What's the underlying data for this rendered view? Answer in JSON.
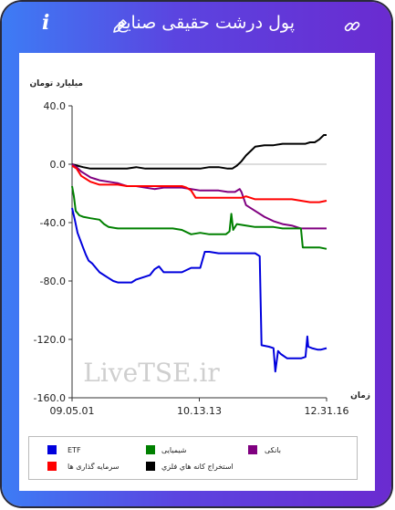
{
  "header": {
    "title": "پول درشت حقیقی صنایع",
    "info_icon": "info-icon",
    "edit_icon": "pencil-icon",
    "link_icon": "link-icon"
  },
  "chart_data": {
    "type": "line",
    "ylabel": "میلیارد تومان",
    "xlabel": "زمان",
    "ylim": [
      -160,
      40
    ],
    "yticks": [
      "40.0",
      "0.0",
      "-40.0",
      "-80.0",
      "-120.0",
      "-160.0"
    ],
    "xticks": [
      "09.05.01",
      "10.13.13",
      "12.31.16"
    ],
    "watermark": "LiveTSE.ir",
    "colors": {
      "ETF": "#0000dd",
      "chem": "#008000",
      "bank": "#800080",
      "invest": "#ff0000",
      "metal": "#000000"
    },
    "series": [
      {
        "name": "استخراج کانه هاي فلزي",
        "color": "#000000",
        "values": [
          [
            0,
            0
          ],
          [
            6,
            -1
          ],
          [
            12,
            -2
          ],
          [
            20,
            -3
          ],
          [
            30,
            -3
          ],
          [
            40,
            -3
          ],
          [
            50,
            -3
          ],
          [
            60,
            -3
          ],
          [
            70,
            -2
          ],
          [
            80,
            -3
          ],
          [
            90,
            -3
          ],
          [
            100,
            -3
          ],
          [
            110,
            -3
          ],
          [
            120,
            -3
          ],
          [
            130,
            -3
          ],
          [
            140,
            -3
          ],
          [
            150,
            -2
          ],
          [
            160,
            -2
          ],
          [
            170,
            -3
          ],
          [
            175,
            -3
          ],
          [
            180,
            -1
          ],
          [
            185,
            2
          ],
          [
            190,
            6
          ],
          [
            195,
            9
          ],
          [
            200,
            12
          ],
          [
            210,
            13
          ],
          [
            220,
            13
          ],
          [
            230,
            14
          ],
          [
            240,
            14
          ],
          [
            250,
            14
          ],
          [
            255,
            14
          ],
          [
            260,
            15
          ],
          [
            265,
            15
          ],
          [
            270,
            17
          ],
          [
            275,
            20
          ],
          [
            278,
            20
          ]
        ]
      },
      {
        "name": "بانکی",
        "color": "#800080",
        "values": [
          [
            0,
            0
          ],
          [
            5,
            -2
          ],
          [
            10,
            -5
          ],
          [
            15,
            -7
          ],
          [
            20,
            -9
          ],
          [
            25,
            -10
          ],
          [
            30,
            -11
          ],
          [
            40,
            -12
          ],
          [
            50,
            -13
          ],
          [
            55,
            -14
          ],
          [
            60,
            -15
          ],
          [
            70,
            -15
          ],
          [
            80,
            -16
          ],
          [
            90,
            -17
          ],
          [
            100,
            -16
          ],
          [
            110,
            -16
          ],
          [
            120,
            -16
          ],
          [
            130,
            -17
          ],
          [
            140,
            -18
          ],
          [
            150,
            -18
          ],
          [
            160,
            -18
          ],
          [
            170,
            -19
          ],
          [
            178,
            -19
          ],
          [
            183,
            -17
          ],
          [
            185,
            -19
          ],
          [
            190,
            -28
          ],
          [
            200,
            -32
          ],
          [
            210,
            -36
          ],
          [
            220,
            -39
          ],
          [
            230,
            -41
          ],
          [
            240,
            -42
          ],
          [
            245,
            -43
          ],
          [
            250,
            -44
          ],
          [
            260,
            -44
          ],
          [
            270,
            -44
          ],
          [
            278,
            -44
          ]
        ]
      },
      {
        "name": "سرمایه گذاری ها",
        "color": "#ff0000",
        "values": [
          [
            0,
            -1
          ],
          [
            5,
            -3
          ],
          [
            10,
            -8
          ],
          [
            15,
            -10
          ],
          [
            20,
            -12
          ],
          [
            25,
            -13
          ],
          [
            30,
            -14
          ],
          [
            40,
            -14
          ],
          [
            50,
            -14
          ],
          [
            60,
            -15
          ],
          [
            70,
            -15
          ],
          [
            80,
            -15
          ],
          [
            90,
            -15
          ],
          [
            100,
            -15
          ],
          [
            110,
            -15
          ],
          [
            120,
            -15
          ],
          [
            125,
            -16
          ],
          [
            130,
            -18
          ],
          [
            135,
            -23
          ],
          [
            140,
            -23
          ],
          [
            150,
            -23
          ],
          [
            160,
            -23
          ],
          [
            170,
            -23
          ],
          [
            178,
            -23
          ],
          [
            185,
            -23
          ],
          [
            190,
            -22
          ],
          [
            195,
            -23
          ],
          [
            200,
            -24
          ],
          [
            210,
            -24
          ],
          [
            220,
            -24
          ],
          [
            230,
            -24
          ],
          [
            240,
            -24
          ],
          [
            250,
            -25
          ],
          [
            260,
            -26
          ],
          [
            270,
            -26
          ],
          [
            278,
            -25
          ]
        ]
      },
      {
        "name": "شیمیایی",
        "color": "#008000",
        "values": [
          [
            0,
            -15
          ],
          [
            2,
            -22
          ],
          [
            4,
            -32
          ],
          [
            8,
            -35
          ],
          [
            12,
            -36
          ],
          [
            20,
            -37
          ],
          [
            30,
            -38
          ],
          [
            35,
            -41
          ],
          [
            40,
            -43
          ],
          [
            50,
            -44
          ],
          [
            60,
            -44
          ],
          [
            70,
            -44
          ],
          [
            80,
            -44
          ],
          [
            90,
            -44
          ],
          [
            100,
            -44
          ],
          [
            110,
            -44
          ],
          [
            120,
            -45
          ],
          [
            130,
            -48
          ],
          [
            140,
            -47
          ],
          [
            150,
            -48
          ],
          [
            160,
            -48
          ],
          [
            168,
            -48
          ],
          [
            172,
            -46
          ],
          [
            174,
            -34
          ],
          [
            176,
            -45
          ],
          [
            180,
            -41
          ],
          [
            190,
            -42
          ],
          [
            200,
            -43
          ],
          [
            210,
            -43
          ],
          [
            220,
            -43
          ],
          [
            230,
            -44
          ],
          [
            240,
            -44
          ],
          [
            250,
            -44
          ],
          [
            252,
            -57
          ],
          [
            256,
            -57
          ],
          [
            262,
            -57
          ],
          [
            270,
            -57
          ],
          [
            278,
            -58
          ]
        ]
      },
      {
        "name": "ETF",
        "color": "#0000dd",
        "values": [
          [
            0,
            -30
          ],
          [
            3,
            -38
          ],
          [
            6,
            -47
          ],
          [
            9,
            -52
          ],
          [
            12,
            -57
          ],
          [
            15,
            -62
          ],
          [
            18,
            -66
          ],
          [
            22,
            -68
          ],
          [
            26,
            -71
          ],
          [
            30,
            -74
          ],
          [
            35,
            -76
          ],
          [
            40,
            -78
          ],
          [
            45,
            -80
          ],
          [
            50,
            -81
          ],
          [
            55,
            -81
          ],
          [
            60,
            -81
          ],
          [
            65,
            -81
          ],
          [
            70,
            -79
          ],
          [
            75,
            -78
          ],
          [
            80,
            -77
          ],
          [
            85,
            -76
          ],
          [
            90,
            -72
          ],
          [
            95,
            -70
          ],
          [
            100,
            -74
          ],
          [
            110,
            -74
          ],
          [
            120,
            -74
          ],
          [
            130,
            -71
          ],
          [
            140,
            -71
          ],
          [
            145,
            -60
          ],
          [
            150,
            -60
          ],
          [
            160,
            -61
          ],
          [
            170,
            -61
          ],
          [
            180,
            -61
          ],
          [
            190,
            -61
          ],
          [
            200,
            -61
          ],
          [
            205,
            -63
          ],
          [
            207,
            -124
          ],
          [
            215,
            -125
          ],
          [
            220,
            -126
          ],
          [
            222,
            -142
          ],
          [
            225,
            -128
          ],
          [
            228,
            -130
          ],
          [
            235,
            -133
          ],
          [
            245,
            -133
          ],
          [
            250,
            -133
          ],
          [
            255,
            -132
          ],
          [
            257,
            -118
          ],
          [
            258,
            -125
          ],
          [
            262,
            -126
          ],
          [
            268,
            -127
          ],
          [
            272,
            -127
          ],
          [
            278,
            -126
          ]
        ]
      }
    ],
    "legend": [
      {
        "key": "ETF",
        "label": "ETF"
      },
      {
        "key": "chem",
        "label": "شیمیایی"
      },
      {
        "key": "bank",
        "label": "بانکی"
      },
      {
        "key": "invest",
        "label": "سرمایه گذاری ها"
      },
      {
        "key": "metal",
        "label": "استخراج کانه هاي فلزي"
      }
    ]
  }
}
